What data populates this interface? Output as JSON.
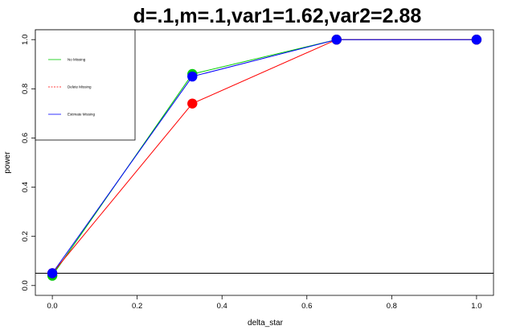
{
  "chart_data": {
    "type": "line",
    "title": "d=.1,m=.1,var1=1.62,var2=2.88",
    "xlabel": "delta_star",
    "ylabel": "power",
    "xlim": [
      -0.04,
      1.04
    ],
    "ylim": [
      -0.04,
      1.04
    ],
    "x_ticks": [
      "0.0",
      "0.2",
      "0.4",
      "0.6",
      "0.8",
      "1.0"
    ],
    "y_ticks": [
      "0.0",
      "0.2",
      "0.4",
      "0.6",
      "0.8",
      "1.0"
    ],
    "x": [
      0,
      0.33,
      0.67,
      1.0
    ],
    "series": [
      {
        "name": "No Missing",
        "color": "#00cc00",
        "dash": "solid",
        "values": [
          0.04,
          0.86,
          1.0,
          1.0
        ]
      },
      {
        "name": "Delete Missing",
        "color": "#ff0000",
        "dash": "dashed",
        "values": [
          0.05,
          0.74,
          1.0,
          1.0
        ]
      },
      {
        "name": "Estimate Missing",
        "color": "#0000ff",
        "dash": "solid",
        "values": [
          0.05,
          0.85,
          1.0,
          1.0
        ]
      }
    ],
    "reference_line_y": 0.05,
    "grid": false,
    "legend_position": "top-left"
  }
}
